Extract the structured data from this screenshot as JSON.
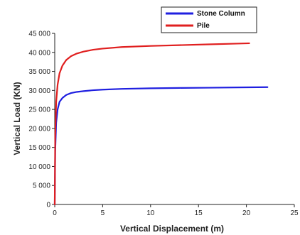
{
  "chart_data": {
    "type": "line",
    "xlabel": "Vertical Displacement (m)",
    "ylabel": "Vertical Load (KN)",
    "xlim": [
      0,
      25
    ],
    "ylim": [
      0,
      45000
    ],
    "xticks": [
      "0",
      "5",
      "10",
      "15",
      "20",
      "25"
    ],
    "yticks": [
      "0",
      "5 000",
      "10 000",
      "15 000",
      "20 000",
      "25 000",
      "30 000",
      "35 000",
      "40 000",
      "45 000"
    ],
    "xtick_values": [
      0,
      5,
      10,
      15,
      20,
      25
    ],
    "ytick_values": [
      0,
      5000,
      10000,
      15000,
      20000,
      25000,
      30000,
      35000,
      40000,
      45000
    ],
    "grid": false,
    "legend": "top-right",
    "series": [
      {
        "name": "Stone Column",
        "color": "#1f1fe0",
        "x": [
          0,
          0.05,
          0.15,
          0.3,
          0.5,
          0.8,
          1.2,
          1.7,
          2.3,
          3,
          4,
          5,
          7,
          10,
          13,
          16,
          19,
          22.2
        ],
        "y": [
          0,
          14000,
          21500,
          25000,
          27000,
          28000,
          28800,
          29300,
          29600,
          29800,
          30050,
          30200,
          30400,
          30550,
          30650,
          30700,
          30780,
          30850
        ]
      },
      {
        "name": "Pile",
        "color": "#e01f1f",
        "x": [
          0,
          0.05,
          0.15,
          0.3,
          0.5,
          0.8,
          1.2,
          1.7,
          2.3,
          3,
          4,
          5,
          7,
          10,
          13,
          16,
          19,
          20.3
        ],
        "y": [
          0,
          18000,
          27000,
          31500,
          34500,
          36500,
          38000,
          39000,
          39700,
          40200,
          40700,
          41000,
          41400,
          41700,
          41900,
          42100,
          42300,
          42400
        ]
      }
    ]
  }
}
